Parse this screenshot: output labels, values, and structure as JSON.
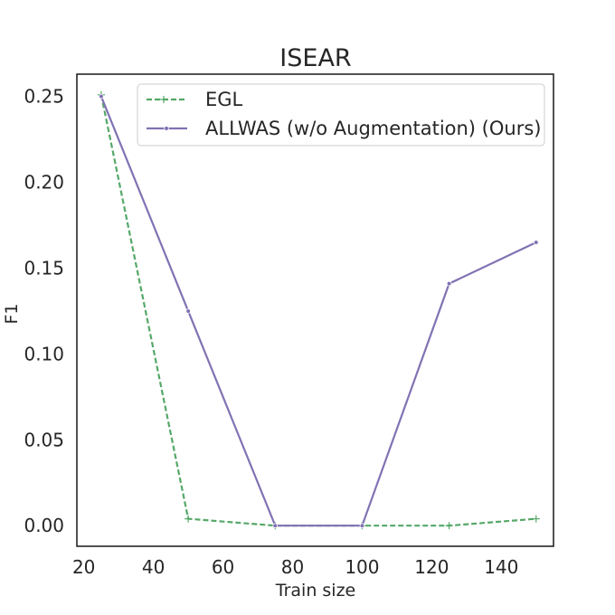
{
  "chart_data": {
    "type": "line",
    "title": "ISEAR",
    "xlabel": "Train size",
    "ylabel": "F1",
    "xlim": [
      18,
      155
    ],
    "ylim": [
      -0.012,
      0.263
    ],
    "xticks": [
      20,
      40,
      60,
      80,
      100,
      120,
      140
    ],
    "yticks": [
      0.0,
      0.05,
      0.1,
      0.15,
      0.2,
      0.25
    ],
    "ytick_labels": [
      "0.00",
      "0.05",
      "0.10",
      "0.15",
      "0.20",
      "0.25"
    ],
    "grid": false,
    "legend": "top-right",
    "series": [
      {
        "name": "EGL",
        "color": "#55a868",
        "style": "dashed",
        "marker": "plus",
        "x": [
          25,
          50,
          75,
          100,
          125,
          150
        ],
        "y": [
          0.251,
          0.004,
          0.0,
          0.0,
          0.0,
          0.004
        ]
      },
      {
        "name": "ALLWAS (w/o Augmentation) (Ours)",
        "color": "#8172b3",
        "style": "solid",
        "marker": "dot",
        "x": [
          25,
          50,
          75,
          100,
          125,
          150
        ],
        "y": [
          0.25,
          0.125,
          0.0,
          0.0,
          0.141,
          0.165
        ]
      }
    ]
  }
}
